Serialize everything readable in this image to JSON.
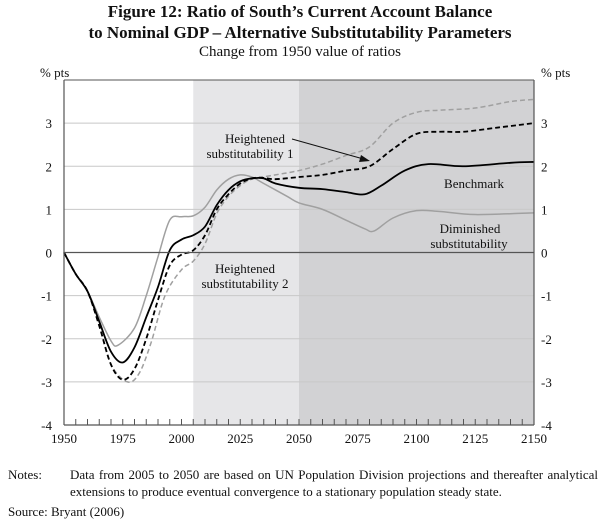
{
  "chart_data": {
    "type": "line",
    "title": "Figure 12: Ratio of South's Current Account Balance to Nominal GDP – Alternative Substitutability Parameters",
    "title_lines": [
      "Figure 12: Ratio of South’s Current Account Balance",
      "to Nominal GDP – Alternative Substitutability Parameters"
    ],
    "subtitle": "Change from 1950 value of ratios",
    "ylabel_left": "% pts",
    "ylabel_right": "% pts",
    "xlim": [
      1950,
      2150
    ],
    "ylim": [
      -4,
      4
    ],
    "xticks": [
      1950,
      1975,
      2000,
      2025,
      2050,
      2075,
      2100,
      2125,
      2150
    ],
    "yticks": [
      -4,
      -3,
      -2,
      -1,
      0,
      1,
      2,
      3
    ],
    "grid": true,
    "shaded_regions": [
      {
        "from": 2005,
        "to": 2050,
        "color": "#e6e6e8"
      },
      {
        "from": 2050,
        "to": 2150,
        "color": "#d2d2d4"
      }
    ],
    "series": [
      {
        "name": "Benchmark",
        "style": "solid",
        "color": "#000000",
        "x": [
          1950,
          1955,
          1960,
          1965,
          1970,
          1975,
          1980,
          1985,
          1990,
          1995,
          2000,
          2005,
          2010,
          2015,
          2020,
          2025,
          2030,
          2035,
          2040,
          2050,
          2060,
          2070,
          2078,
          2085,
          2095,
          2105,
          2120,
          2140,
          2150
        ],
        "y": [
          0,
          -0.5,
          -0.9,
          -1.6,
          -2.3,
          -2.55,
          -2.2,
          -1.5,
          -0.8,
          0.05,
          0.3,
          0.4,
          0.6,
          1.1,
          1.45,
          1.65,
          1.72,
          1.72,
          1.6,
          1.5,
          1.47,
          1.4,
          1.35,
          1.55,
          1.9,
          2.05,
          2.0,
          2.08,
          2.1
        ]
      },
      {
        "name": "Diminished substitutability",
        "style": "solid",
        "color": "#a0a0a0",
        "x": [
          1950,
          1955,
          1960,
          1965,
          1970,
          1973,
          1980,
          1985,
          1990,
          1995,
          2000,
          2005,
          2010,
          2015,
          2020,
          2025,
          2030,
          2035,
          2045,
          2050,
          2060,
          2070,
          2078,
          2082,
          2090,
          2100,
          2110,
          2125,
          2150
        ],
        "y": [
          0,
          -0.5,
          -0.9,
          -1.5,
          -2.05,
          -2.15,
          -1.75,
          -1.0,
          -0.1,
          0.75,
          0.83,
          0.85,
          1.05,
          1.45,
          1.7,
          1.8,
          1.75,
          1.6,
          1.3,
          1.15,
          1.0,
          0.75,
          0.55,
          0.5,
          0.8,
          0.97,
          0.95,
          0.88,
          0.92
        ]
      },
      {
        "name": "Heightened substitutability 1",
        "style": "dashed",
        "color": "#000000",
        "x": [
          1950,
          1955,
          1960,
          1965,
          1970,
          1975,
          1980,
          1985,
          1990,
          1995,
          2000,
          2005,
          2010,
          2015,
          2020,
          2025,
          2030,
          2035,
          2040,
          2050,
          2060,
          2070,
          2080,
          2090,
          2100,
          2110,
          2120,
          2135,
          2150
        ],
        "y": [
          0,
          -0.5,
          -0.9,
          -1.7,
          -2.6,
          -2.95,
          -2.7,
          -2.0,
          -1.1,
          -0.3,
          -0.05,
          0.05,
          0.4,
          1.0,
          1.35,
          1.6,
          1.72,
          1.73,
          1.7,
          1.75,
          1.8,
          1.9,
          2.0,
          2.4,
          2.75,
          2.8,
          2.8,
          2.9,
          3.0
        ]
      },
      {
        "name": "Heightened substitutability 2",
        "style": "dashed",
        "color": "#a0a0a0",
        "x": [
          1950,
          1955,
          1960,
          1965,
          1970,
          1977,
          1982,
          1987,
          1993,
          2000,
          2005,
          2010,
          2015,
          2020,
          2025,
          2030,
          2040,
          2050,
          2060,
          2070,
          2080,
          2090,
          2100,
          2110,
          2125,
          2140,
          2150
        ],
        "y": [
          0,
          -0.5,
          -0.9,
          -1.7,
          -2.6,
          -3.0,
          -2.8,
          -2.1,
          -1.0,
          -0.4,
          -0.2,
          0.2,
          0.9,
          1.3,
          1.55,
          1.7,
          1.8,
          1.9,
          2.05,
          2.25,
          2.45,
          3.0,
          3.25,
          3.3,
          3.35,
          3.5,
          3.55
        ]
      }
    ],
    "annotations": [
      {
        "lines": [
          "Heightened",
          "substitutability 1"
        ],
        "arrow": true
      },
      {
        "lines": [
          "Heightened",
          "substitutability 2"
        ]
      },
      {
        "lines": [
          "Benchmark"
        ]
      },
      {
        "lines": [
          "Diminished",
          "substitutability"
        ]
      }
    ]
  },
  "notes": {
    "label": "Notes:",
    "text": "Data from 2005 to 2050 are based on UN Population Division projections and thereafter analytical extensions to produce eventual convergence to a stationary population steady state."
  },
  "source": "Source:  Bryant (2006)"
}
